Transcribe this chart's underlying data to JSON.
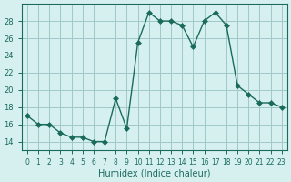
{
  "x": [
    0,
    1,
    2,
    3,
    4,
    5,
    6,
    7,
    8,
    9,
    10,
    11,
    12,
    13,
    14,
    15,
    16,
    17,
    18,
    19,
    20,
    21,
    22,
    23
  ],
  "y": [
    17,
    16,
    16,
    15,
    14.5,
    14.5,
    14,
    14,
    19,
    15.5,
    25.5,
    29,
    28,
    28,
    27.5,
    25,
    28,
    29,
    27.5,
    20.5,
    19.5,
    18.5,
    18.5,
    18
  ],
  "line_color": "#1a6b5a",
  "marker": "D",
  "marker_size": 3,
  "bg_color": "#d6f0f0",
  "grid_color": "#a0c8c8",
  "xlabel": "Humidex (Indice chaleur)",
  "ylim": [
    13,
    30
  ],
  "xlim": [
    -0.5,
    23.5
  ],
  "yticks": [
    14,
    16,
    18,
    20,
    22,
    24,
    26,
    28
  ],
  "xticks": [
    0,
    1,
    2,
    3,
    4,
    5,
    6,
    7,
    8,
    9,
    10,
    11,
    12,
    13,
    14,
    15,
    16,
    17,
    18,
    19,
    20,
    21,
    22,
    23
  ]
}
